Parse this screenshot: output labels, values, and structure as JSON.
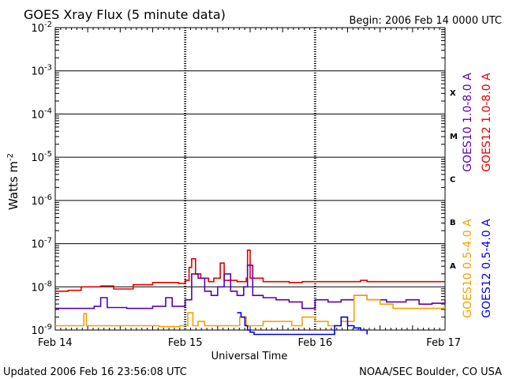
{
  "chart_data": {
    "type": "line",
    "title": "GOES Xray Flux (5 minute data)",
    "begin_label": "Begin:  2006 Feb 14 0000 UTC",
    "ylabel_main": "Watts m",
    "ylabel_sup": "-2",
    "xlabel": "Universal Time",
    "y_scale": "log",
    "ylim_exp": [
      -9,
      -2
    ],
    "y_ticks": [
      {
        "exp": -2,
        "base": "10",
        "sup": "-2"
      },
      {
        "exp": -3,
        "base": "10",
        "sup": "-3"
      },
      {
        "exp": -4,
        "base": "10",
        "sup": "-4"
      },
      {
        "exp": -5,
        "base": "10",
        "sup": "-5"
      },
      {
        "exp": -6,
        "base": "10",
        "sup": "-6"
      },
      {
        "exp": -7,
        "base": "10",
        "sup": "-7"
      },
      {
        "exp": -8,
        "base": "10",
        "sup": "-8"
      },
      {
        "exp": -9,
        "base": "10",
        "sup": "-9"
      }
    ],
    "xlim_days": [
      0,
      3
    ],
    "x_ticks": [
      {
        "day": 0,
        "label": "Feb 14"
      },
      {
        "day": 1,
        "label": "Feb 15"
      },
      {
        "day": 2,
        "label": "Feb 16"
      },
      {
        "day": 3,
        "label": "Feb 17"
      }
    ],
    "flare_classes": [
      {
        "label": "X",
        "exp": -3.5
      },
      {
        "label": "M",
        "exp": -4.5
      },
      {
        "label": "C",
        "exp": -5.5
      },
      {
        "label": "B",
        "exp": -6.5
      },
      {
        "label": "A",
        "exp": -7.5
      }
    ],
    "series": [
      {
        "name": "GOES12 1.0-8.0 A",
        "color": "#e00000",
        "points": [
          [
            0.0,
            -8.1
          ],
          [
            0.1,
            -8.08
          ],
          [
            0.2,
            -8.0
          ],
          [
            0.35,
            -7.98
          ],
          [
            0.45,
            -8.05
          ],
          [
            0.6,
            -7.95
          ],
          [
            0.75,
            -7.9
          ],
          [
            0.85,
            -7.9
          ],
          [
            0.95,
            -7.92
          ],
          [
            1.0,
            -7.85
          ],
          [
            1.03,
            -7.55
          ],
          [
            1.05,
            -7.35
          ],
          [
            1.08,
            -7.7
          ],
          [
            1.12,
            -7.8
          ],
          [
            1.18,
            -7.88
          ],
          [
            1.22,
            -7.8
          ],
          [
            1.27,
            -7.45
          ],
          [
            1.3,
            -7.85
          ],
          [
            1.4,
            -7.88
          ],
          [
            1.47,
            -7.8
          ],
          [
            1.48,
            -7.15
          ],
          [
            1.5,
            -7.8
          ],
          [
            1.6,
            -7.88
          ],
          [
            1.7,
            -7.88
          ],
          [
            1.8,
            -7.9
          ],
          [
            1.9,
            -7.88
          ],
          [
            2.0,
            -7.88
          ],
          [
            2.1,
            -7.88
          ],
          [
            2.2,
            -7.88
          ],
          [
            2.35,
            -7.85
          ],
          [
            2.4,
            -7.88
          ],
          [
            2.6,
            -7.88
          ],
          [
            2.8,
            -7.88
          ],
          [
            3.0,
            -7.88
          ]
        ]
      },
      {
        "name": "GOES10 1.0-8.0 A",
        "color": "#5a00b0",
        "points": [
          [
            0.0,
            -8.5
          ],
          [
            0.2,
            -8.5
          ],
          [
            0.3,
            -8.45
          ],
          [
            0.35,
            -8.25
          ],
          [
            0.4,
            -8.48
          ],
          [
            0.55,
            -8.5
          ],
          [
            0.75,
            -8.45
          ],
          [
            0.85,
            -8.25
          ],
          [
            0.9,
            -8.45
          ],
          [
            1.0,
            -8.3
          ],
          [
            1.05,
            -7.7
          ],
          [
            1.1,
            -7.8
          ],
          [
            1.15,
            -8.1
          ],
          [
            1.2,
            -8.2
          ],
          [
            1.25,
            -8.0
          ],
          [
            1.3,
            -7.7
          ],
          [
            1.35,
            -8.1
          ],
          [
            1.4,
            -8.2
          ],
          [
            1.45,
            -8.0
          ],
          [
            1.48,
            -7.5
          ],
          [
            1.52,
            -8.2
          ],
          [
            1.6,
            -8.25
          ],
          [
            1.7,
            -8.3
          ],
          [
            1.8,
            -8.35
          ],
          [
            1.9,
            -8.5
          ],
          [
            2.0,
            -8.3
          ],
          [
            2.1,
            -8.35
          ],
          [
            2.2,
            -8.3
          ],
          [
            2.3,
            -8.2
          ],
          [
            2.4,
            -8.3
          ],
          [
            2.55,
            -8.35
          ],
          [
            2.7,
            -8.3
          ],
          [
            2.8,
            -8.4
          ],
          [
            2.9,
            -8.38
          ],
          [
            3.0,
            -8.3
          ]
        ]
      },
      {
        "name": "GOES10 0.5-4.0 A",
        "color": "#f5a000",
        "points": [
          [
            0.0,
            -8.9
          ],
          [
            0.2,
            -8.9
          ],
          [
            0.22,
            -8.62
          ],
          [
            0.24,
            -8.9
          ],
          [
            0.5,
            -8.9
          ],
          [
            0.8,
            -8.92
          ],
          [
            0.96,
            -8.9
          ],
          [
            1.02,
            -8.6
          ],
          [
            1.06,
            -8.9
          ],
          [
            1.1,
            -8.8
          ],
          [
            1.15,
            -8.9
          ],
          [
            1.22,
            -8.9
          ],
          [
            1.32,
            -8.9
          ],
          [
            1.38,
            -8.9
          ],
          [
            1.42,
            -8.7
          ],
          [
            1.47,
            -8.9
          ],
          [
            1.52,
            -8.9
          ],
          [
            1.6,
            -8.8
          ],
          [
            1.7,
            -8.8
          ],
          [
            1.82,
            -8.9
          ],
          [
            1.9,
            -8.7
          ],
          [
            2.0,
            -8.8
          ],
          [
            2.1,
            -8.9
          ],
          [
            2.2,
            -8.8
          ],
          [
            2.3,
            -8.2
          ],
          [
            2.4,
            -8.3
          ],
          [
            2.5,
            -8.4
          ],
          [
            2.6,
            -8.5
          ],
          [
            2.8,
            -8.5
          ],
          [
            3.0,
            -8.5
          ]
        ]
      },
      {
        "name": "GOES12 0.5-4.0 A",
        "color": "#0000e0",
        "points": [
          [
            1.4,
            -8.6
          ],
          [
            1.43,
            -8.7
          ],
          [
            1.46,
            -8.9
          ],
          [
            1.48,
            -9.0
          ],
          [
            1.5,
            -9.05
          ],
          [
            1.53,
            -9.1
          ],
          [
            2.15,
            -8.9
          ],
          [
            2.2,
            -8.7
          ],
          [
            2.25,
            -8.9
          ],
          [
            2.3,
            -8.95
          ],
          [
            2.35,
            -9.0
          ],
          [
            2.4,
            -9.1
          ]
        ]
      }
    ]
  },
  "footer": {
    "updated": "Updated 2006 Feb 16 23:56:08 UTC",
    "credit": "NOAA/SEC Boulder, CO USA"
  }
}
